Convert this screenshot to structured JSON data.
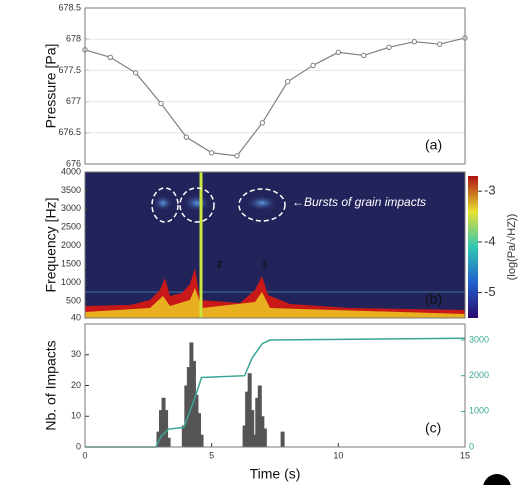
{
  "chart_data": [
    {
      "type": "line",
      "ylabel": "Pressure [Pa]",
      "panel_label": "(a)",
      "x": [
        0,
        1,
        2,
        3,
        4,
        5,
        6,
        7,
        8,
        9,
        10,
        11,
        12,
        13,
        14,
        15
      ],
      "values": [
        677.83,
        677.71,
        677.46,
        676.97,
        676.43,
        676.18,
        676.13,
        676.66,
        677.32,
        677.58,
        677.79,
        677.74,
        677.87,
        677.96,
        677.92,
        678.02
      ],
      "color": "#808080",
      "xlim": [
        0,
        15
      ],
      "ylim": [
        676,
        678.5
      ],
      "yticks": [
        676,
        676.5,
        677,
        677.5,
        678,
        678.5
      ],
      "grid": true
    },
    {
      "type": "spectrogram",
      "ylabel": "Frequency [Hz]",
      "panel_label": "(b)",
      "xlim": [
        0,
        15
      ],
      "ylim": [
        40,
        4000
      ],
      "yticks": [
        40,
        500,
        1000,
        1500,
        2000,
        2500,
        3000,
        3500,
        4000
      ],
      "annotation": "←Bursts of grain impacts",
      "markers": [
        "2",
        "3"
      ],
      "colorbar": {
        "label": "(log(Pa/√HZ))",
        "lim": [
          -5.5,
          -2.7
        ],
        "ticks": [
          -3,
          -4,
          -5
        ]
      }
    },
    {
      "type": "bar",
      "ylabel": "Nb. of Impacts",
      "panel_label": "(c)",
      "xlabel": "Time (s)",
      "xlim": [
        0,
        15
      ],
      "xticks": [
        0,
        5,
        10,
        15
      ],
      "ylim": [
        0,
        40
      ],
      "yticks": [
        0,
        10,
        20,
        30
      ],
      "y2lim": [
        0,
        3450
      ],
      "y2ticks": [
        0,
        1000,
        2000,
        3000
      ],
      "bars": {
        "color": "#555555",
        "x": [
          2.9,
          3.0,
          3.1,
          3.2,
          3.3,
          3.9,
          4.0,
          4.1,
          4.2,
          4.3,
          4.4,
          4.5,
          4.6,
          6.3,
          6.4,
          6.5,
          6.6,
          6.7,
          6.8,
          6.9,
          7.0,
          7.1,
          7.8
        ],
        "values": [
          5,
          12,
          16,
          12,
          3,
          7,
          20,
          26,
          34,
          28,
          17,
          11,
          4,
          7,
          18,
          24,
          12,
          4,
          16,
          20,
          10,
          6,
          5
        ]
      },
      "line": {
        "color": "#3aa596",
        "axis": "y2",
        "x": [
          0,
          2.8,
          3.0,
          3.3,
          3.9,
          4.3,
          4.6,
          6.3,
          6.6,
          7.0,
          7.3,
          15
        ],
        "values": [
          0,
          0,
          300,
          500,
          550,
          1300,
          1950,
          2000,
          2500,
          2900,
          3000,
          3050
        ]
      }
    }
  ]
}
